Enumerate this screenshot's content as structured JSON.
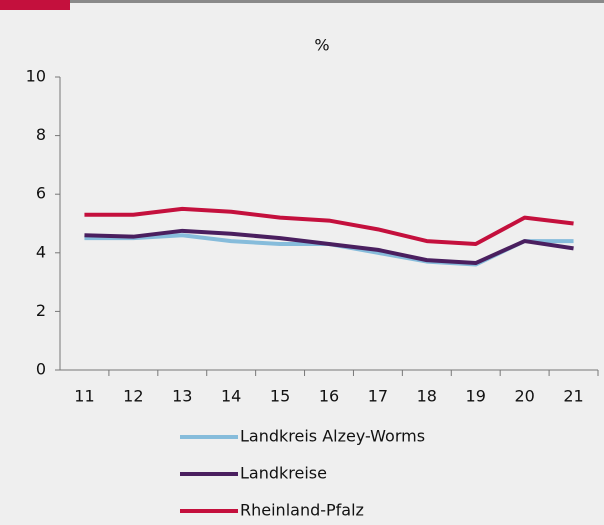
{
  "chart_data": {
    "type": "line",
    "title": "%",
    "categories": [
      "11",
      "12",
      "13",
      "14",
      "15",
      "16",
      "17",
      "18",
      "19",
      "20",
      "21"
    ],
    "series": [
      {
        "name": "Landkreis Alzey-Worms",
        "color": "#86bcdb",
        "values": [
          4.5,
          4.5,
          4.6,
          4.4,
          4.3,
          4.3,
          4.0,
          3.7,
          3.6,
          4.4,
          4.4
        ]
      },
      {
        "name": "Landkreise",
        "color": "#4a1f5f",
        "values": [
          4.6,
          4.55,
          4.75,
          4.65,
          4.5,
          4.3,
          4.1,
          3.75,
          3.65,
          4.4,
          4.15
        ]
      },
      {
        "name": "Rheinland-Pfalz",
        "color": "#c4103d",
        "values": [
          5.3,
          5.3,
          5.5,
          5.4,
          5.2,
          5.1,
          4.8,
          4.4,
          4.3,
          5.2,
          5.0
        ]
      }
    ],
    "ylim": [
      0,
      10
    ],
    "yticks": [
      0,
      2,
      4,
      6,
      8,
      10
    ],
    "grid": false,
    "legend": "bottom"
  }
}
